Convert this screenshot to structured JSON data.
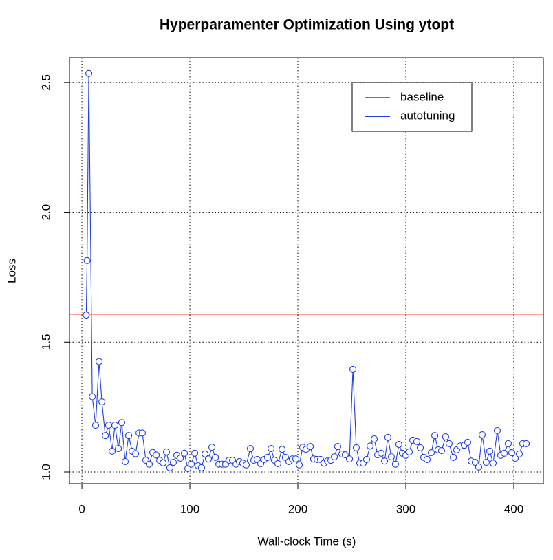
{
  "chart_data": {
    "type": "line",
    "title": "Hyperparamenter Optimization Using ytopt",
    "xlabel": "Wall-clock Time (s)",
    "ylabel": "Loss",
    "xlim": [
      -11.5,
      427.4
    ],
    "ylim": [
      0.955,
      2.595
    ],
    "xticks": [
      0,
      100,
      200,
      300,
      400
    ],
    "yticks": [
      {
        "value": 1,
        "label": "1.0"
      },
      1.5,
      {
        "value": 2,
        "label": "2.0"
      },
      2.5
    ],
    "grid": true,
    "legend": "top-right",
    "series": [
      {
        "name": "baseline",
        "color": "#f0483a",
        "hline": 1.607
      },
      {
        "name": "autotuning",
        "color": "#1f3fe0",
        "x": [
          4.0,
          4.8,
          6.4,
          9.6,
          12.7,
          15.9,
          18.5,
          21.7,
          24.8,
          28,
          30.6,
          33.8,
          36.9,
          40.1,
          43.3,
          46.5,
          49.7,
          52.9,
          56,
          59.2,
          62.4,
          65.6,
          68.8,
          72,
          75.2,
          78.3,
          81.5,
          84.7,
          87.9,
          91.1,
          94.9,
          98.1,
          101.3,
          104.5,
          107.6,
          110.8,
          114,
          117.2,
          120.4,
          123.6,
          126.8,
          129.9,
          133.1,
          136.3,
          139.5,
          142.7,
          145.9,
          149,
          152.2,
          156,
          159.2,
          162.4,
          165.6,
          168.8,
          172,
          175.2,
          178.3,
          181.5,
          185.4,
          188.5,
          191.7,
          194.9,
          198.1,
          201.3,
          204.5,
          207.6,
          211.5,
          214.6,
          217.8,
          221,
          224.2,
          227.4,
          230.6,
          233.8,
          236.9,
          240.8,
          243.9,
          247.8,
          251,
          254.1,
          257.3,
          260.5,
          263.7,
          266.9,
          270.7,
          273.9,
          277.1,
          280.3,
          283.4,
          286.6,
          290.4,
          293.6,
          296.8,
          300,
          303.2,
          306.4,
          310.2,
          313.4,
          316.6,
          319.7,
          323.6,
          326.8,
          329.9,
          333.1,
          336.9,
          340.1,
          344,
          347.1,
          350.3,
          354.1,
          357.3,
          360.5,
          364.3,
          367.5,
          370.7,
          374.5,
          377.7,
          380.9,
          384.7,
          387.9,
          391.1,
          394.9,
          398.1,
          401.3,
          405.1,
          408.3,
          411.5
        ],
        "values": [
          1.604,
          1.814,
          2.535,
          1.29,
          1.18,
          1.425,
          1.27,
          1.14,
          1.18,
          1.08,
          1.18,
          1.09,
          1.19,
          1.04,
          1.14,
          1.08,
          1.07,
          1.15,
          1.15,
          1.045,
          1.03,
          1.075,
          1.065,
          1.045,
          1.035,
          1.077,
          1.016,
          1.037,
          1.064,
          1.053,
          1.072,
          1.013,
          1.03,
          1.072,
          1.024,
          1.016,
          1.069,
          1.05,
          1.095,
          1.056,
          1.03,
          1.03,
          1.03,
          1.045,
          1.045,
          1.03,
          1.04,
          1.034,
          1.027,
          1.09,
          1.045,
          1.048,
          1.032,
          1.048,
          1.056,
          1.09,
          1.045,
          1.032,
          1.087,
          1.056,
          1.04,
          1.05,
          1.05,
          1.027,
          1.095,
          1.087,
          1.098,
          1.05,
          1.048,
          1.048,
          1.034,
          1.042,
          1.045,
          1.058,
          1.098,
          1.069,
          1.066,
          1.05,
          1.395,
          1.093,
          1.034,
          1.034,
          1.048,
          1.1,
          1.127,
          1.066,
          1.072,
          1.042,
          1.133,
          1.058,
          1.03,
          1.106,
          1.072,
          1.064,
          1.077,
          1.122,
          1.117,
          1.093,
          1.056,
          1.048,
          1.074,
          1.14,
          1.085,
          1.082,
          1.135,
          1.109,
          1.056,
          1.085,
          1.1,
          1.103,
          1.114,
          1.042,
          1.037,
          1.019,
          1.143,
          1.037,
          1.08,
          1.034,
          1.159,
          1.064,
          1.072,
          1.109,
          1.074,
          1.053,
          1.069,
          1.109,
          1.109
        ]
      }
    ]
  }
}
